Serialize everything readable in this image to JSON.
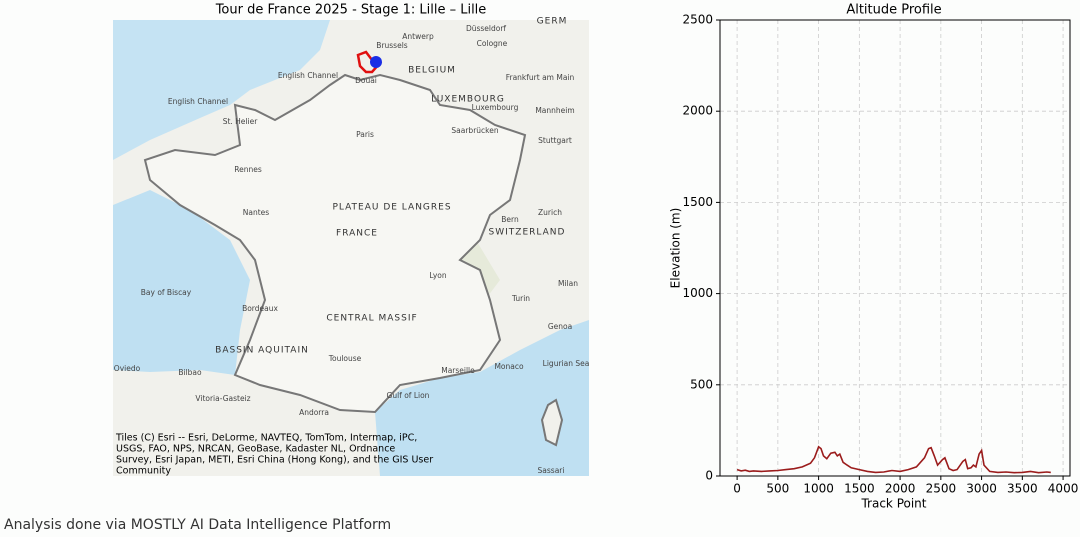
{
  "map": {
    "title": "Tour de France 2025 - Stage 1: Lille – Lille",
    "labels": [
      "Brussels",
      "Antwerp",
      "Düsseldorf",
      "Cologne",
      "GERM",
      "English Channel",
      "English Channel",
      "BELGIUM",
      "Douai",
      "Frankfurt am Main",
      "LUXEMBOURG",
      "Luxembourg",
      "Mannheim",
      "St. Helier",
      "Paris",
      "Saarbrücken",
      "Stuttgart",
      "Rennes",
      "Nantes",
      "PLATEAU DE LANGRES",
      "Bern",
      "Zurich",
      "FRANCE",
      "SWITZERLAND",
      "Bay of Biscay",
      "Lyon",
      "Milan",
      "Turin",
      "CENTRAL MASSIF",
      "Bordeaux",
      "BASSIN AQUITAIN",
      "Toulouse",
      "Genoa",
      "Marseille",
      "Monaco",
      "Ligurian Sea",
      "Oviedo",
      "Bilbao",
      "Vitoria-Gasteiz",
      "Andorra",
      "Gulf of Lion",
      "Sassari"
    ],
    "attribution": [
      "Tiles (C) Esri -- Esri, DeLorme, NAVTEQ, TomTom, Intermap, iPC,",
      "USGS, FAO, NPS, NRCAN, GeoBase, Kadaster NL, Ordnance",
      "Survey, Esri Japan, METI, Esri China (Hong Kong), and the GIS User",
      "Community"
    ]
  },
  "chart_data": {
    "type": "line",
    "title": "Altitude Profile",
    "xlabel": "Track Point",
    "ylabel": "Elevation (m)",
    "xlim": [
      -210,
      4085
    ],
    "ylim": [
      0,
      2500
    ],
    "xticks": [
      0,
      500,
      1000,
      1500,
      2000,
      2500,
      3000,
      3500,
      4000
    ],
    "yticks": [
      0,
      500,
      1000,
      1500,
      2000,
      2500
    ],
    "grid": true,
    "series": [
      {
        "name": "Elevation",
        "color": "#9b1c1c",
        "x": [
          0,
          50,
          100,
          150,
          200,
          300,
          400,
          500,
          600,
          700,
          800,
          900,
          950,
          1000,
          1030,
          1060,
          1100,
          1150,
          1200,
          1230,
          1260,
          1300,
          1350,
          1400,
          1500,
          1600,
          1700,
          1800,
          1900,
          2000,
          2100,
          2200,
          2300,
          2350,
          2380,
          2420,
          2460,
          2520,
          2550,
          2600,
          2650,
          2700,
          2770,
          2800,
          2830,
          2870,
          2900,
          2930,
          2970,
          3000,
          3030,
          3100,
          3200,
          3300,
          3400,
          3500,
          3600,
          3700,
          3800,
          3850
        ],
        "values": [
          35,
          28,
          32,
          25,
          28,
          25,
          28,
          30,
          35,
          40,
          50,
          70,
          100,
          160,
          150,
          110,
          95,
          125,
          130,
          110,
          120,
          75,
          60,
          45,
          35,
          25,
          20,
          22,
          30,
          25,
          35,
          50,
          100,
          150,
          155,
          110,
          60,
          90,
          100,
          40,
          30,
          35,
          80,
          90,
          40,
          45,
          60,
          50,
          120,
          140,
          60,
          25,
          20,
          22,
          18,
          20,
          25,
          18,
          22,
          20
        ]
      }
    ]
  },
  "footer": "Analysis done via MOSTLY AI Data Intelligence Platform"
}
